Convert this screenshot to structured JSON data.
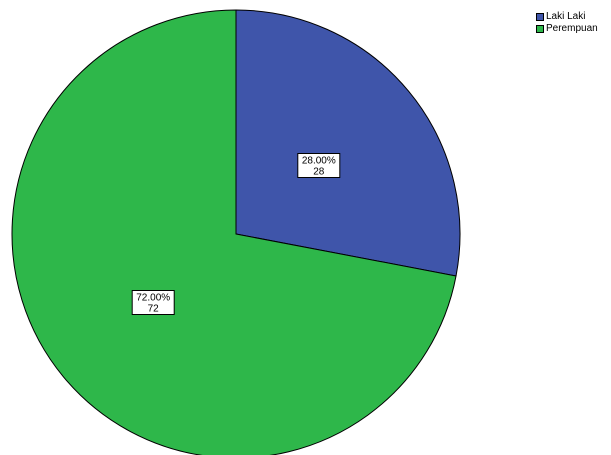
{
  "chart_data": {
    "type": "pie",
    "categories": [
      "Laki Laki",
      "Perempuan"
    ],
    "values": [
      28,
      72
    ],
    "percentages": [
      "28.00%",
      "72.00%"
    ],
    "colors": [
      "#3f55aa",
      "#2eb74a"
    ],
    "legend_position": "top-right",
    "start_angle_deg": 0,
    "direction": "clockwise"
  },
  "legend": {
    "items": [
      {
        "label": "Laki Laki",
        "color": "#3f55aa"
      },
      {
        "label": "Perempuan",
        "color": "#2eb74a"
      }
    ]
  }
}
